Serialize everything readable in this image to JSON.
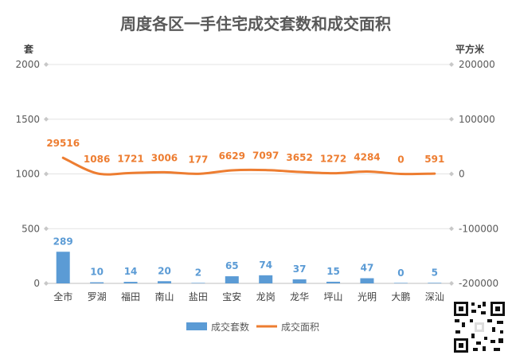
{
  "chart_data": {
    "type": "bar",
    "title": "周度各区一手住宅成交套数和成交面积",
    "categories": [
      "全市",
      "罗湖",
      "福田",
      "南山",
      "盐田",
      "宝安",
      "龙岗",
      "龙华",
      "坪山",
      "光明",
      "大鹏",
      "深汕"
    ],
    "y_left": {
      "unit": "套",
      "ylim": [
        0,
        2000
      ],
      "ticks": [
        "0",
        "500",
        "1000",
        "1500",
        "2000"
      ]
    },
    "y_right": {
      "unit": "平方米",
      "ylim": [
        -200000,
        200000
      ],
      "ticks": [
        "-200000",
        "-100000",
        "0",
        "100000",
        "200000"
      ]
    },
    "series": [
      {
        "name": "成交套数",
        "type": "bar",
        "axis": "left",
        "color": "#5b9bd5",
        "values": [
          289,
          10,
          14,
          20,
          2,
          65,
          74,
          37,
          15,
          47,
          0,
          5
        ]
      },
      {
        "name": "成交面积",
        "type": "line",
        "axis": "right",
        "color": "#ed7d31",
        "values": [
          29516,
          1086,
          1721,
          3006,
          177,
          6629,
          7097,
          3652,
          1272,
          4284,
          0,
          591
        ]
      }
    ],
    "grid": true,
    "legend": "bottom"
  }
}
